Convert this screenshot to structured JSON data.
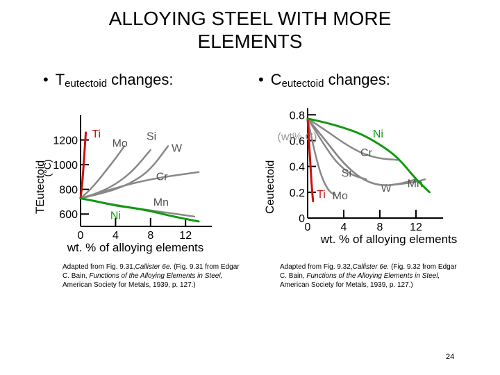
{
  "slide": {
    "title_line1": "ALLOYING STEEL WITH MORE",
    "title_line2": "ELEMENTS",
    "bullet_left": {
      "main": "T",
      "sub": "eutectoid",
      "rest": " changes:"
    },
    "bullet_right": {
      "main": "C",
      "sub": "eutectoid",
      "rest": " changes:"
    },
    "caption_left": {
      "part1": "Adapted from Fig. 9.31,",
      "book": "Callister 6e.",
      "part2": " (Fig. 9.31 from Edgar C. Bain, ",
      "work": "Functions of the Alloying Elements in Steel,",
      "part3": " American Society for Metals, 1939, p. 127.)"
    },
    "caption_right": {
      "part1": "Adapted from Fig. 9.32,",
      "book": "Callister 6e.",
      "part2": " (Fig. 9.32 from Edgar C. Bain, ",
      "work": "Functions of the Alloying Elements in Steel,",
      "part3": " American Society for Metals, 1939, p. 127.)"
    },
    "page_number": "24"
  },
  "colors": {
    "red": "#cc1111",
    "green": "#119911",
    "gray": "#888888",
    "axis": "#000000"
  },
  "chart_data": [
    {
      "type": "line",
      "ylabel_main": "T",
      "ylabel_sub": "Eutectoid",
      "ylabel_unit": "(°C)",
      "xlabel": "wt. % of alloying elements",
      "xlim": [
        0,
        15
      ],
      "ylim": [
        500,
        1400
      ],
      "xticks": [
        0,
        4,
        8,
        12
      ],
      "yticks": [
        600,
        800,
        1000,
        1200
      ],
      "series": [
        {
          "name": "Ti",
          "color": "red",
          "label_x": 1.8,
          "label_y": 1220,
          "x": [
            0,
            0.2,
            0.4,
            0.6
          ],
          "y": [
            727,
            850,
            1050,
            1260
          ]
        },
        {
          "name": "Mo",
          "color": "gray",
          "label_x": 4.5,
          "label_y": 1145,
          "x": [
            0,
            1,
            2,
            3,
            4,
            5
          ],
          "y": [
            727,
            790,
            870,
            960,
            1050,
            1150
          ]
        },
        {
          "name": "Si",
          "color": "gray",
          "label_x": 8.1,
          "label_y": 1200,
          "x": [
            0,
            2,
            4,
            6,
            8
          ],
          "y": [
            727,
            770,
            840,
            950,
            1120
          ]
        },
        {
          "name": "W",
          "color": "gray",
          "label_x": 11,
          "label_y": 1105,
          "x": [
            0,
            2,
            4,
            6,
            8,
            10
          ],
          "y": [
            727,
            760,
            800,
            860,
            960,
            1150
          ]
        },
        {
          "name": "Cr",
          "color": "gray",
          "label_x": 9.3,
          "label_y": 875,
          "x": [
            0,
            2,
            4,
            6,
            8,
            10,
            13.5
          ],
          "y": [
            727,
            770,
            810,
            850,
            880,
            905,
            940
          ]
        },
        {
          "name": "Mn",
          "color": "gray",
          "label_x": 9.2,
          "label_y": 665,
          "x": [
            0,
            2,
            4,
            6,
            8,
            10,
            13
          ],
          "y": [
            727,
            700,
            675,
            650,
            630,
            610,
            580
          ]
        },
        {
          "name": "Ni",
          "color": "green",
          "label_x": 4,
          "label_y": 560,
          "x": [
            0,
            2,
            4,
            6,
            8,
            10,
            12,
            13.5
          ],
          "y": [
            727,
            700,
            668,
            650,
            625,
            590,
            560,
            540
          ]
        }
      ]
    },
    {
      "type": "line",
      "ylabel_main": "C",
      "ylabel_sub": "eutectoid",
      "ylabel_unit": "(wt% C)",
      "xlabel": "wt. % of alloying elements",
      "xlim": [
        0,
        15
      ],
      "ylim": [
        0,
        0.85
      ],
      "xticks": [
        0,
        4,
        8,
        12
      ],
      "yticks": [
        0,
        0.2,
        0.4,
        0.6,
        0.8
      ],
      "series": [
        {
          "name": "Ti",
          "color": "red",
          "label_x": 1.5,
          "label_y": 0.155,
          "x": [
            0,
            0.15,
            0.3,
            0.45,
            0.6
          ],
          "y": [
            0.77,
            0.6,
            0.42,
            0.25,
            0.13
          ]
        },
        {
          "name": "Mo",
          "color": "gray",
          "label_x": 3.6,
          "label_y": 0.145,
          "x": [
            0,
            0.5,
            1,
            1.5,
            2,
            2.5,
            3
          ],
          "y": [
            0.77,
            0.6,
            0.45,
            0.33,
            0.25,
            0.2,
            0.18
          ]
        },
        {
          "name": "Si",
          "color": "gray",
          "label_x": 4.3,
          "label_y": 0.32,
          "x": [
            0,
            1,
            2,
            3,
            4,
            5,
            6.5
          ],
          "y": [
            0.77,
            0.66,
            0.55,
            0.45,
            0.38,
            0.33,
            0.3
          ]
        },
        {
          "name": "W",
          "color": "gray",
          "label_x": 8.7,
          "label_y": 0.205,
          "x": [
            0,
            2,
            4,
            6,
            8,
            10,
            12
          ],
          "y": [
            0.77,
            0.6,
            0.42,
            0.3,
            0.25,
            0.26,
            0.3
          ]
        },
        {
          "name": "Cr",
          "color": "gray",
          "label_x": 6.5,
          "label_y": 0.48,
          "x": [
            0,
            2,
            4,
            6,
            8,
            10
          ],
          "y": [
            0.77,
            0.68,
            0.58,
            0.5,
            0.46,
            0.45
          ]
        },
        {
          "name": "Mn",
          "color": "gray",
          "label_x": 11.9,
          "label_y": 0.24,
          "x": [
            0,
            2,
            4,
            6,
            8,
            10,
            12,
            13
          ],
          "y": [
            0.77,
            0.6,
            0.42,
            0.3,
            0.25,
            0.26,
            0.28,
            0.3
          ]
        },
        {
          "name": "Ni",
          "color": "green",
          "label_x": 7.8,
          "label_y": 0.625,
          "x": [
            0,
            2,
            4,
            6,
            8,
            10,
            12,
            13.5
          ],
          "y": [
            0.77,
            0.74,
            0.7,
            0.65,
            0.57,
            0.47,
            0.3,
            0.2
          ]
        }
      ]
    }
  ]
}
